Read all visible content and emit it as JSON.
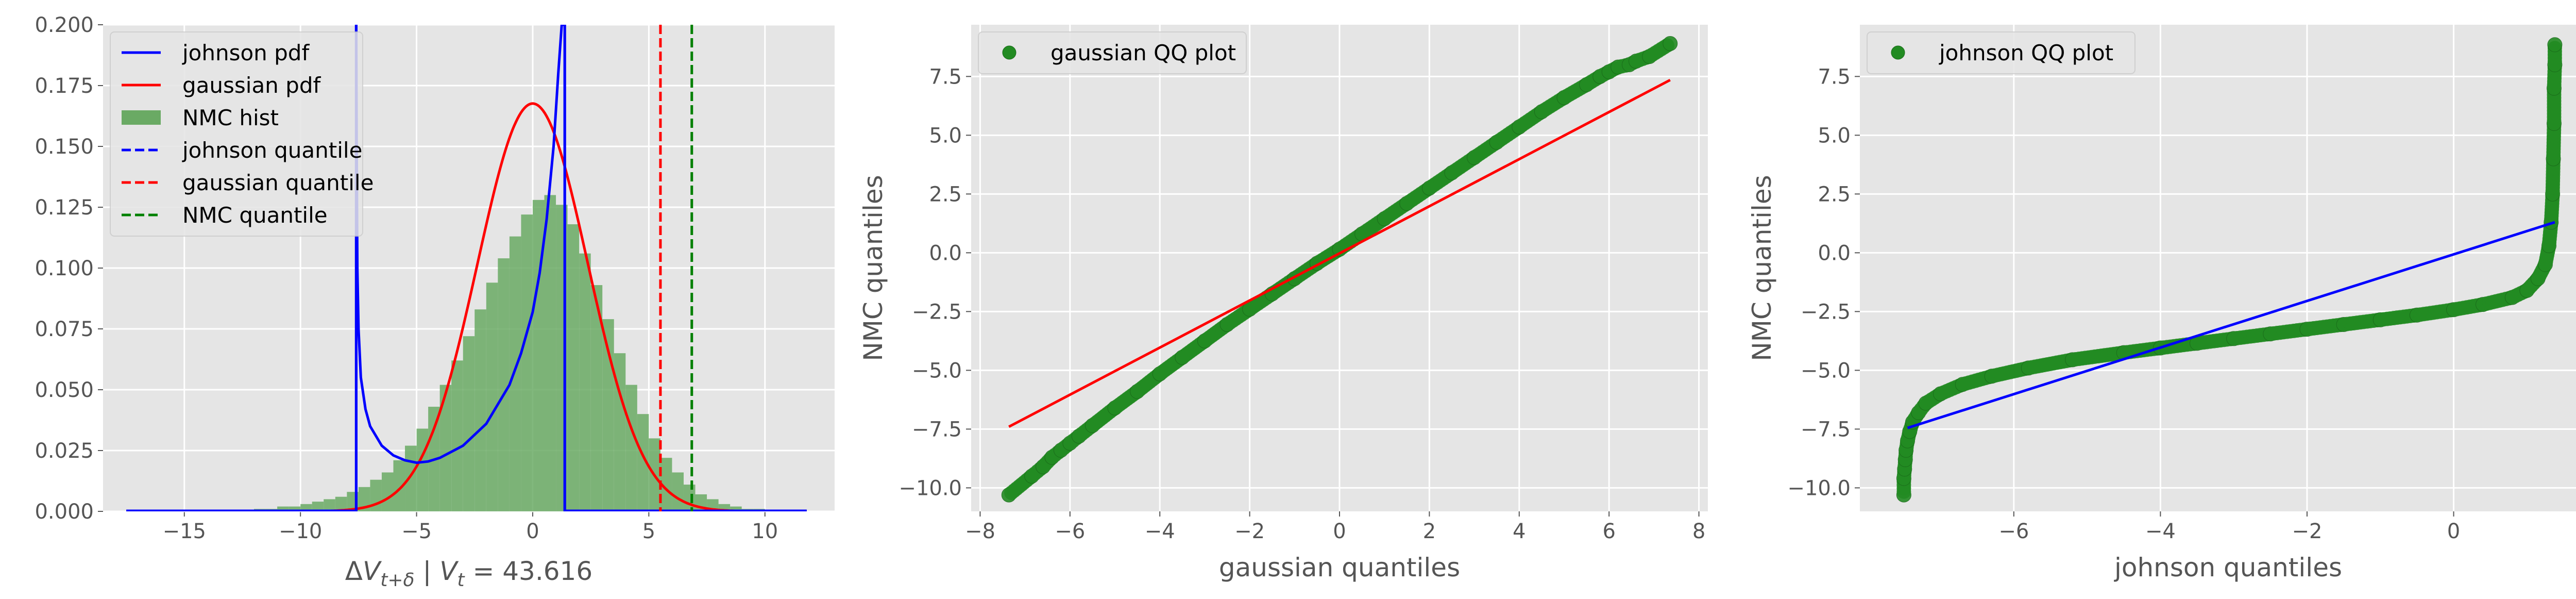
{
  "chart_data": [
    {
      "type": "histogram+line",
      "xlabel": "ΔV_{t+δ} | V_t = 43.616",
      "xlim": [
        -18.5,
        13
      ],
      "ylim": [
        0,
        0.2
      ],
      "xticks": [
        -15,
        -10,
        -5,
        0,
        5,
        10
      ],
      "yticks": [
        0.0,
        0.025,
        0.05,
        0.075,
        0.1,
        0.125,
        0.15,
        0.175,
        0.2
      ],
      "ytick_labels": [
        "0.000",
        "0.025",
        "0.050",
        "0.075",
        "0.100",
        "0.125",
        "0.150",
        "0.175",
        "0.200"
      ],
      "grid": true,
      "legend_position": "upper-left",
      "legend": [
        {
          "label": "johnson pdf",
          "color": "#0000ff",
          "style": "solid"
        },
        {
          "label": "gaussian pdf",
          "color": "#ff0000",
          "style": "solid"
        },
        {
          "label": "NMC hist",
          "color": "#6aaa64",
          "style": "patch"
        },
        {
          "label": "johnson quantile",
          "color": "#0000ff",
          "style": "dashed"
        },
        {
          "label": "gaussian quantile",
          "color": "#ff0000",
          "style": "dashed"
        },
        {
          "label": "NMC quantile",
          "color": "#008000",
          "style": "dashed"
        }
      ],
      "hist": {
        "color": "#6aaa64",
        "bin_edges": [
          -12,
          -11.5,
          -11,
          -10.5,
          -10,
          -9.5,
          -9,
          -8.5,
          -8,
          -7.5,
          -7,
          -6.5,
          -6,
          -5.5,
          -5,
          -4.5,
          -4,
          -3.5,
          -3,
          -2.5,
          -2,
          -1.5,
          -1,
          -0.5,
          0,
          0.5,
          1,
          1.5,
          2,
          2.5,
          3,
          3.5,
          4,
          4.5,
          5,
          5.5,
          6,
          6.5,
          7,
          7.5,
          8,
          8.5,
          9,
          9.5,
          10
        ],
        "values": [
          0.001,
          0.001,
          0.002,
          0.002,
          0.003,
          0.004,
          0.005,
          0.006,
          0.008,
          0.01,
          0.013,
          0.016,
          0.021,
          0.027,
          0.034,
          0.043,
          0.052,
          0.062,
          0.072,
          0.083,
          0.094,
          0.104,
          0.113,
          0.122,
          0.128,
          0.13,
          0.126,
          0.118,
          0.106,
          0.093,
          0.079,
          0.065,
          0.052,
          0.04,
          0.03,
          0.022,
          0.016,
          0.011,
          0.007,
          0.005,
          0.003,
          0.002,
          0.001,
          0.001
        ]
      },
      "gaussian_pdf": {
        "color": "#ff0000",
        "mean": 0.0,
        "std": 2.38,
        "x_range": [
          -17.5,
          11.8
        ]
      },
      "johnson_pdf": {
        "color": "#0000ff",
        "x": [
          -7.6,
          -7.58,
          -7.55,
          -7.5,
          -7.4,
          -7.2,
          -7.0,
          -6.5,
          -6.0,
          -5.5,
          -5.0,
          -4.5,
          -4.0,
          -3.0,
          -2.0,
          -1.0,
          -0.5,
          0.0,
          0.3,
          0.6,
          0.9,
          1.1,
          1.25,
          1.32,
          1.36,
          1.38
        ],
        "y": [
          0.2,
          0.15,
          0.1,
          0.075,
          0.055,
          0.042,
          0.035,
          0.027,
          0.023,
          0.021,
          0.02,
          0.0205,
          0.022,
          0.027,
          0.036,
          0.052,
          0.065,
          0.082,
          0.098,
          0.12,
          0.15,
          0.18,
          0.2,
          0.2,
          0.2,
          0.2
        ]
      },
      "johnson_baseline_range": [
        -17.5,
        11.8
      ],
      "johnson_quantile": -7.6,
      "johnson_upper_line": 1.38,
      "gaussian_quantile": 5.5,
      "nmc_quantile": 6.85
    },
    {
      "type": "scatter",
      "xlabel": "gaussian quantiles",
      "ylabel": "NMC quantiles",
      "xlim": [
        -8.2,
        8.2
      ],
      "ylim": [
        -11,
        9.7
      ],
      "xticks": [
        -8,
        -6,
        -4,
        -2,
        0,
        2,
        4,
        6,
        8
      ],
      "yticks": [
        -10.0,
        -7.5,
        -5.0,
        -2.5,
        0.0,
        2.5,
        5.0,
        7.5
      ],
      "ytick_labels": [
        "−10.0",
        "−7.5",
        "−5.0",
        "−2.5",
        "0.0",
        "2.5",
        "5.0",
        "7.5"
      ],
      "grid": true,
      "legend_position": "upper-left",
      "legend": [
        {
          "label": "gaussian QQ plot",
          "color": "#228b22",
          "style": "marker"
        }
      ],
      "point_color": "#228b22",
      "points_x": [
        -7.36,
        -6.85,
        -6.6,
        -6.4,
        -6.2,
        -6.0,
        -5.8,
        -5.5,
        -5.0,
        -4.5,
        -4.0,
        -3.5,
        -3.0,
        -2.5,
        -2.0,
        -1.5,
        -1.0,
        -0.5,
        0.0,
        0.5,
        1.0,
        1.5,
        2.0,
        2.5,
        3.0,
        3.5,
        4.0,
        4.5,
        5.0,
        5.5,
        5.8,
        6.0,
        6.2,
        6.45,
        6.6,
        6.9,
        7.36
      ],
      "points_y": [
        -10.3,
        -9.5,
        -9.1,
        -8.7,
        -8.4,
        -8.1,
        -7.8,
        -7.35,
        -6.6,
        -5.9,
        -5.15,
        -4.45,
        -3.75,
        -3.05,
        -2.4,
        -1.75,
        -1.1,
        -0.45,
        0.15,
        0.8,
        1.45,
        2.1,
        2.75,
        3.4,
        4.05,
        4.7,
        5.35,
        6.0,
        6.6,
        7.15,
        7.5,
        7.7,
        7.9,
        8.0,
        8.15,
        8.35,
        8.9
      ],
      "fit_line": {
        "color": "#ff0000",
        "x": [
          -7.36,
          7.36
        ],
        "y": [
          -7.4,
          7.35
        ]
      }
    },
    {
      "type": "scatter",
      "xlabel": "johnson quantiles",
      "ylabel": "NMC quantiles",
      "xlim": [
        -8.1,
        1.95
      ],
      "ylim": [
        -11,
        9.7
      ],
      "xticks": [
        -6,
        -4,
        -2,
        0
      ],
      "yticks": [
        -10.0,
        -7.5,
        -5.0,
        -2.5,
        0.0,
        2.5,
        5.0,
        7.5
      ],
      "ytick_labels": [
        "−10.0",
        "−7.5",
        "−5.0",
        "−2.5",
        "0.0",
        "2.5",
        "5.0",
        "7.5"
      ],
      "grid": true,
      "legend_position": "upper-left",
      "legend": [
        {
          "label": "johnson QQ plot",
          "color": "#228b22",
          "style": "marker"
        }
      ],
      "point_color": "#228b22",
      "points_x": [
        -7.5,
        -7.5,
        -7.49,
        -7.48,
        -7.47,
        -7.45,
        -7.42,
        -7.38,
        -7.3,
        -7.2,
        -7.0,
        -6.7,
        -6.3,
        -5.8,
        -5.2,
        -4.5,
        -4.0,
        -3.5,
        -3.0,
        -2.5,
        -2.0,
        -1.5,
        -1.0,
        -0.5,
        0.0,
        0.4,
        0.8,
        1.0,
        1.15,
        1.25,
        1.3,
        1.33,
        1.35,
        1.36,
        1.37,
        1.37,
        1.38,
        1.38
      ],
      "points_y": [
        -10.3,
        -9.6,
        -9.2,
        -8.8,
        -8.4,
        -8.0,
        -7.6,
        -7.2,
        -6.8,
        -6.4,
        -6.0,
        -5.6,
        -5.25,
        -4.9,
        -4.55,
        -4.25,
        -4.05,
        -3.85,
        -3.65,
        -3.45,
        -3.25,
        -3.05,
        -2.85,
        -2.65,
        -2.42,
        -2.2,
        -1.9,
        -1.6,
        -1.1,
        -0.5,
        0.3,
        1.3,
        2.5,
        4.0,
        5.5,
        7.0,
        8.0,
        8.85
      ],
      "fit_line": {
        "color": "#0000ff",
        "x": [
          -7.45,
          1.38
        ],
        "y": [
          -7.45,
          1.3
        ]
      }
    }
  ]
}
